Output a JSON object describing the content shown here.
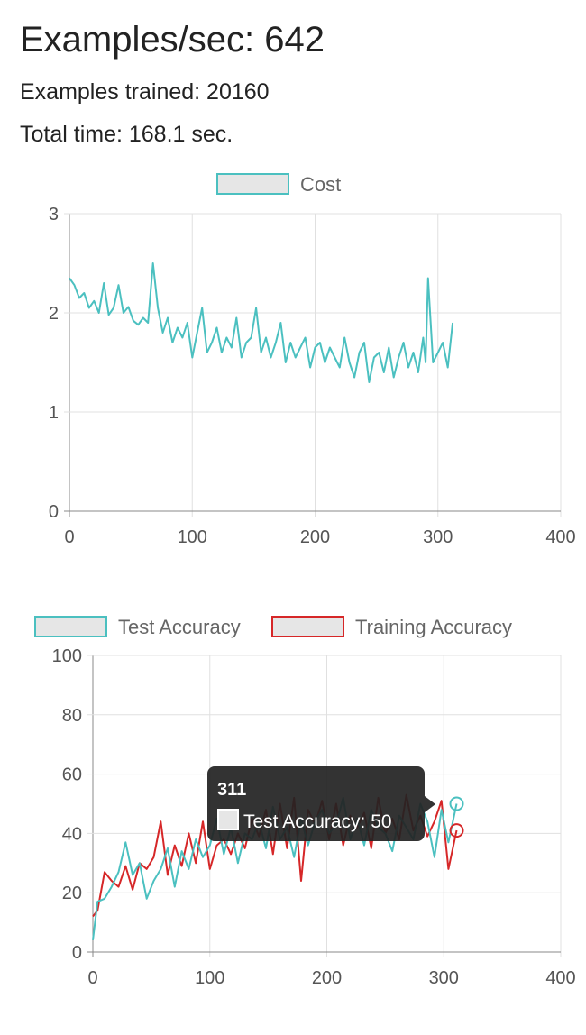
{
  "stats": {
    "examples_per_sec": "Examples/sec: 642",
    "examples_trained": "Examples trained: 20160",
    "total_time": "Total time: 168.1 sec."
  },
  "colors": {
    "test": "#4bc0c0",
    "training": "#d62728",
    "legend_fill": "#e6e6e6",
    "grid": "#e0e0e0",
    "axis": "#888888",
    "tooltip_bg": "#222222"
  },
  "chart_data": [
    {
      "type": "line",
      "legend": [
        "Cost"
      ],
      "legend_position": "top",
      "grid": true,
      "xlim": [
        0,
        400
      ],
      "ylim": [
        0,
        3
      ],
      "x_ticks": [
        "0",
        "100",
        "200",
        "300",
        "400"
      ],
      "y_ticks": [
        "0",
        "1",
        "2",
        "3"
      ],
      "series": [
        {
          "name": "Cost",
          "color": "#4bc0c0",
          "x": [
            0,
            4,
            8,
            12,
            16,
            20,
            24,
            28,
            32,
            36,
            40,
            44,
            48,
            52,
            56,
            60,
            64,
            68,
            72,
            76,
            80,
            84,
            88,
            92,
            96,
            100,
            104,
            108,
            112,
            116,
            120,
            124,
            128,
            132,
            136,
            140,
            144,
            148,
            152,
            156,
            160,
            164,
            168,
            172,
            176,
            180,
            184,
            188,
            192,
            196,
            200,
            204,
            208,
            212,
            216,
            220,
            224,
            228,
            232,
            236,
            240,
            244,
            248,
            252,
            256,
            260,
            264,
            268,
            272,
            276,
            280,
            284,
            288,
            290,
            292,
            296,
            300,
            304,
            308,
            312
          ],
          "y": [
            2.35,
            2.28,
            2.15,
            2.2,
            2.05,
            2.12,
            2.0,
            2.3,
            1.98,
            2.05,
            2.28,
            2.0,
            2.06,
            1.92,
            1.88,
            1.95,
            1.9,
            2.5,
            2.05,
            1.8,
            1.95,
            1.7,
            1.85,
            1.75,
            1.9,
            1.55,
            1.8,
            2.05,
            1.6,
            1.7,
            1.85,
            1.6,
            1.75,
            1.65,
            1.95,
            1.55,
            1.7,
            1.75,
            2.05,
            1.6,
            1.75,
            1.55,
            1.7,
            1.9,
            1.5,
            1.7,
            1.55,
            1.65,
            1.75,
            1.45,
            1.65,
            1.7,
            1.5,
            1.65,
            1.55,
            1.45,
            1.75,
            1.5,
            1.35,
            1.6,
            1.7,
            1.3,
            1.55,
            1.6,
            1.4,
            1.65,
            1.35,
            1.55,
            1.7,
            1.45,
            1.6,
            1.4,
            1.75,
            1.5,
            2.35,
            1.5,
            1.6,
            1.7,
            1.45,
            1.9
          ]
        }
      ]
    },
    {
      "type": "line",
      "legend": [
        "Test Accuracy",
        "Training Accuracy"
      ],
      "legend_position": "top",
      "grid": true,
      "xlim": [
        0,
        400
      ],
      "ylim": [
        0,
        100
      ],
      "x_ticks": [
        "0",
        "100",
        "200",
        "300",
        "400"
      ],
      "y_ticks": [
        "0",
        "20",
        "40",
        "60",
        "80",
        "100"
      ],
      "series": [
        {
          "name": "Test Accuracy",
          "color": "#4bc0c0",
          "x": [
            0,
            4,
            10,
            16,
            22,
            28,
            34,
            40,
            46,
            52,
            58,
            64,
            70,
            76,
            82,
            88,
            94,
            100,
            106,
            112,
            118,
            124,
            130,
            136,
            142,
            148,
            154,
            160,
            166,
            172,
            178,
            184,
            190,
            196,
            202,
            208,
            214,
            220,
            226,
            232,
            238,
            244,
            250,
            256,
            262,
            268,
            274,
            280,
            286,
            292,
            298,
            304,
            311
          ],
          "y": [
            4,
            17,
            18,
            22,
            27,
            37,
            26,
            30,
            18,
            24,
            28,
            35,
            22,
            34,
            28,
            38,
            32,
            36,
            45,
            33,
            42,
            30,
            40,
            38,
            44,
            35,
            49,
            38,
            42,
            32,
            45,
            36,
            44,
            48,
            40,
            43,
            52,
            38,
            45,
            36,
            48,
            42,
            40,
            34,
            46,
            42,
            38,
            50,
            44,
            32,
            48,
            37,
            50
          ]
        },
        {
          "name": "Training Accuracy",
          "color": "#d62728",
          "x": [
            0,
            4,
            10,
            16,
            22,
            28,
            34,
            40,
            46,
            52,
            58,
            64,
            70,
            76,
            82,
            88,
            94,
            100,
            106,
            112,
            118,
            124,
            130,
            136,
            142,
            148,
            154,
            160,
            166,
            172,
            178,
            184,
            190,
            196,
            202,
            208,
            214,
            220,
            226,
            232,
            238,
            244,
            250,
            256,
            262,
            268,
            274,
            280,
            286,
            292,
            298,
            304,
            311
          ],
          "y": [
            12,
            14,
            27,
            24,
            22,
            29,
            21,
            30,
            28,
            32,
            44,
            26,
            36,
            29,
            40,
            30,
            44,
            28,
            36,
            38,
            33,
            40,
            35,
            45,
            39,
            48,
            33,
            50,
            35,
            52,
            24,
            48,
            43,
            51,
            38,
            50,
            36,
            46,
            42,
            47,
            35,
            52,
            40,
            45,
            38,
            53,
            41,
            46,
            39,
            44,
            51,
            28,
            41
          ]
        }
      ],
      "tooltip": {
        "title": "311",
        "label": "Test Accuracy: 50"
      }
    }
  ]
}
